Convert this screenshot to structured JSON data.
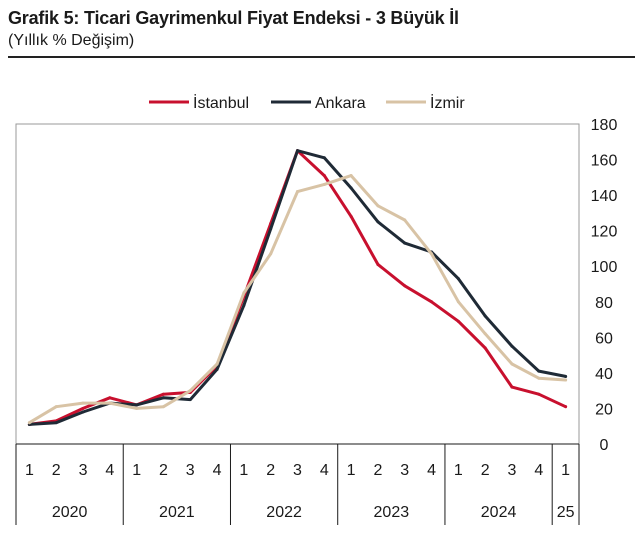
{
  "header": {
    "title": "Grafik 5: Ticari Gayrimenkul Fiyat Endeksi - 3 Büyük İl",
    "subtitle": "(Yıllık % Değişim)"
  },
  "chart_data": {
    "type": "line",
    "title": "Grafik 5: Ticari Gayrimenkul Fiyat Endeksi - 3 Büyük İl",
    "subtitle": "(Yıllık % Değişim)",
    "ylabel": "",
    "xlabel": "",
    "ylim": [
      0,
      180
    ],
    "yticks": [
      "0",
      "20",
      "40",
      "60",
      "80",
      "100",
      "120",
      "140",
      "160",
      "180"
    ],
    "yaxis_position": "right",
    "legend_position": "top-center",
    "quarters": [
      "1",
      "2",
      "3",
      "4",
      "1",
      "2",
      "3",
      "4",
      "1",
      "2",
      "3",
      "4",
      "1",
      "2",
      "3",
      "4",
      "1",
      "2",
      "3",
      "4",
      "1"
    ],
    "years": [
      {
        "label": "2020",
        "start": 0,
        "count": 4
      },
      {
        "label": "2021",
        "start": 4,
        "count": 4
      },
      {
        "label": "2022",
        "start": 8,
        "count": 4
      },
      {
        "label": "2023",
        "start": 12,
        "count": 4
      },
      {
        "label": "2024",
        "start": 16,
        "count": 4
      },
      {
        "label": "25",
        "start": 20,
        "count": 1
      }
    ],
    "series": [
      {
        "name": "İstanbul",
        "color": "#c8102e",
        "values": [
          11,
          13,
          20,
          26,
          22,
          28,
          29,
          44,
          83,
          124,
          165,
          151,
          128,
          101,
          89,
          80,
          69,
          54,
          32,
          28,
          21
        ]
      },
      {
        "name": "Ankara",
        "color": "#1f2a36",
        "values": [
          11,
          12,
          18,
          23,
          22,
          26,
          25,
          42,
          78,
          121,
          165,
          161,
          144,
          125,
          113,
          108,
          93,
          72,
          55,
          41,
          38
        ]
      },
      {
        "name": "İzmir",
        "color": "#d8c3a5",
        "values": [
          12,
          21,
          23,
          23,
          20,
          21,
          30,
          45,
          85,
          107,
          142,
          146,
          151,
          134,
          126,
          107,
          80,
          62,
          45,
          37,
          36
        ]
      }
    ]
  }
}
